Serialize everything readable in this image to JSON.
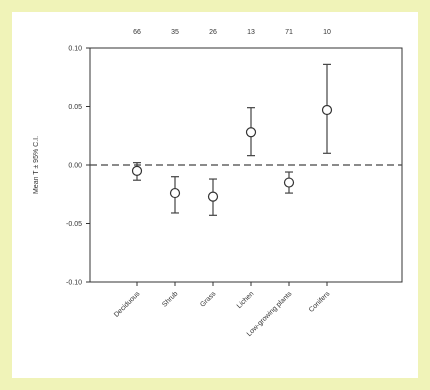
{
  "chart_data": {
    "type": "scatter",
    "categories": [
      "Deciduous",
      "Shrub",
      "Grass",
      "Lichen",
      "Low-growing plants",
      "Conifers"
    ],
    "counts": [
      "66",
      "35",
      "26",
      "13",
      "71",
      "10"
    ],
    "ylabel": "Mean T ± 95% C.I.",
    "ylim": [
      -0.1,
      0.1
    ],
    "yticks": [
      -0.1,
      -0.05,
      0.0,
      0.05,
      0.1
    ],
    "ytick_labels": [
      "-0.10",
      "-0.05",
      "0.00",
      "0.05",
      "0.10"
    ],
    "reference_line": {
      "y": 0.0,
      "style": "dashed"
    },
    "series": [
      {
        "mean": [
          -0.005,
          -0.024,
          -0.027,
          0.028,
          -0.015,
          0.047
        ],
        "lower": [
          -0.013,
          -0.041,
          -0.043,
          0.008,
          -0.024,
          0.01
        ],
        "upper": [
          0.002,
          -0.01,
          -0.012,
          0.049,
          -0.006,
          0.086
        ]
      }
    ],
    "grid": false,
    "legend": "none"
  }
}
